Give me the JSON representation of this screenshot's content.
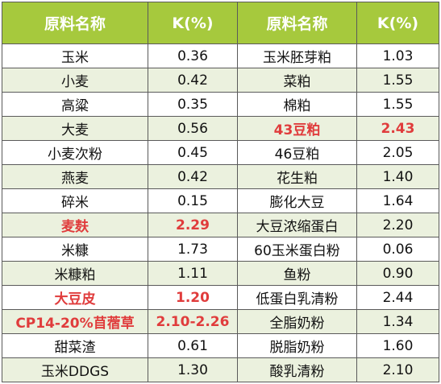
{
  "table": {
    "headers": [
      "原料名称",
      "K(%)",
      "原料名称",
      "K(%)"
    ],
    "rows": [
      {
        "left_name": "玉米",
        "left_k": "0.36",
        "right_name": "玉米胚芽粕",
        "right_k": "1.03",
        "left_highlight": false,
        "right_highlight": false
      },
      {
        "left_name": "小麦",
        "left_k": "0.42",
        "right_name": "菜粕",
        "right_k": "1.55",
        "left_highlight": false,
        "right_highlight": false
      },
      {
        "left_name": "高粱",
        "left_k": "0.35",
        "right_name": "棉粕",
        "right_k": "1.55",
        "left_highlight": false,
        "right_highlight": false
      },
      {
        "left_name": "大麦",
        "left_k": "0.56",
        "right_name": "43豆粕",
        "right_k": "2.43",
        "left_highlight": false,
        "right_highlight": true
      },
      {
        "left_name": "小麦次粉",
        "left_k": "0.45",
        "right_name": "46豆粕",
        "right_k": "2.05",
        "left_highlight": false,
        "right_highlight": false
      },
      {
        "left_name": "燕麦",
        "left_k": "0.42",
        "right_name": "花生粕",
        "right_k": "1.40",
        "left_highlight": false,
        "right_highlight": false
      },
      {
        "left_name": "碎米",
        "left_k": "0.15",
        "right_name": "膨化大豆",
        "right_k": "1.64",
        "left_highlight": false,
        "right_highlight": false
      },
      {
        "left_name": "麦麸",
        "left_k": "2.29",
        "right_name": "大豆浓缩蛋白",
        "right_k": "2.20",
        "left_highlight": true,
        "right_highlight": false
      },
      {
        "left_name": "米糠",
        "left_k": "1.73",
        "right_name": "60玉米蛋白粉",
        "right_k": "0.06",
        "left_highlight": false,
        "right_highlight": false
      },
      {
        "left_name": "米糠粕",
        "left_k": "1.11",
        "right_name": "鱼粉",
        "right_k": "0.90",
        "left_highlight": false,
        "right_highlight": false
      },
      {
        "left_name": "大豆皮",
        "left_k": "1.20",
        "right_name": "低蛋白乳清粉",
        "right_k": "2.44",
        "left_highlight": true,
        "right_highlight": false
      },
      {
        "left_name": "CP14-20%苜蓿草",
        "left_k": "2.10-2.26",
        "right_name": "全脂奶粉",
        "right_k": "1.34",
        "left_highlight": true,
        "right_highlight": false
      },
      {
        "left_name": "甜菜渣",
        "left_k": "0.61",
        "right_name": "脱脂奶粉",
        "right_k": "1.60",
        "left_highlight": false,
        "right_highlight": false
      },
      {
        "left_name": "玉米DDGS",
        "left_k": "1.30",
        "right_name": "酸乳清粉",
        "right_k": "2.10",
        "left_highlight": false,
        "right_highlight": false
      }
    ]
  },
  "colors": {
    "header_bg": "#a6c93d",
    "header_text": "#ffffff",
    "stripe_bg": "#ebf1de",
    "highlight_text": "#e03c3c",
    "border": "#5a5a5a"
  }
}
